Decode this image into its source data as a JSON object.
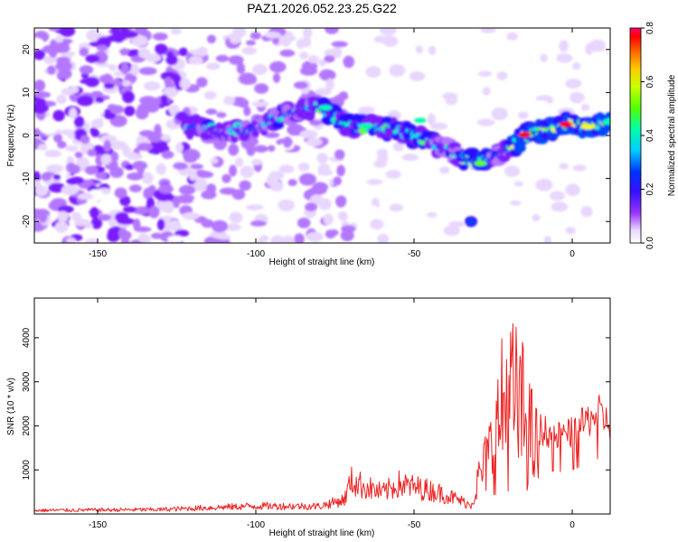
{
  "title": "PAZ1.2026.052.23.25.G22",
  "chart_data": [
    {
      "type": "heatmap",
      "name": "spectrogram",
      "xlabel": "Height of straight line (km)",
      "ylabel": "Frequency (Hz)",
      "xlim": [
        -170,
        12
      ],
      "ylim": [
        -25,
        25
      ],
      "xticks": [
        -150,
        -100,
        -50,
        0
      ],
      "xtick_labels": [
        "-150",
        "-100",
        "-50",
        "0"
      ],
      "yticks": [
        -20,
        -10,
        0,
        10,
        20
      ],
      "ytick_labels": [
        "-20",
        "-10",
        "0",
        "10",
        "20"
      ],
      "colorbar": {
        "label": "Normalized spectral amplitude",
        "range": [
          0.0,
          0.8
        ],
        "ticks": [
          0.0,
          0.2,
          0.4,
          0.6,
          0.8
        ],
        "tick_labels": [
          "0.0",
          "0.2",
          "0.4",
          "0.6",
          "0.8"
        ]
      },
      "ridge": {
        "x": [
          -120,
          -110,
          -100,
          -90,
          -80,
          -70,
          -60,
          -50,
          -40,
          -35,
          -30,
          -25,
          -20,
          -15,
          -10,
          -5,
          0,
          5,
          12
        ],
        "y": [
          2,
          1,
          2,
          5,
          7,
          2,
          2,
          0,
          -3,
          -5,
          -6,
          -5,
          -3,
          0,
          1,
          2,
          3,
          2,
          3
        ]
      },
      "blob": {
        "x": -32,
        "y": -20
      }
    },
    {
      "type": "line",
      "name": "snr",
      "xlabel": "Height of straight line (km)",
      "ylabel": "SNR (10 * v/v)",
      "xlim": [
        -170,
        12
      ],
      "ylim": [
        0,
        4900
      ],
      "xticks": [
        -150,
        -100,
        -50,
        0
      ],
      "xtick_labels": [
        "-150",
        "-100",
        "-50",
        "0"
      ],
      "yticks": [
        1000,
        2000,
        3000,
        4000
      ],
      "ytick_labels": [
        "1000",
        "2000",
        "3000",
        "4000"
      ],
      "color": "#ee2222",
      "envelope": {
        "x": [
          -170,
          -130,
          -100,
          -80,
          -72,
          -70,
          -60,
          -55,
          -45,
          -40,
          -32,
          -28,
          -25,
          -22,
          -20,
          -18,
          -15,
          -12,
          -10,
          -5,
          0,
          5,
          8,
          12
        ],
        "y": [
          120,
          150,
          270,
          260,
          480,
          1100,
          700,
          1000,
          800,
          650,
          300,
          1400,
          2400,
          3900,
          4500,
          4100,
          3600,
          2300,
          2100,
          1900,
          2000,
          2300,
          2500,
          2200
        ]
      }
    }
  ]
}
